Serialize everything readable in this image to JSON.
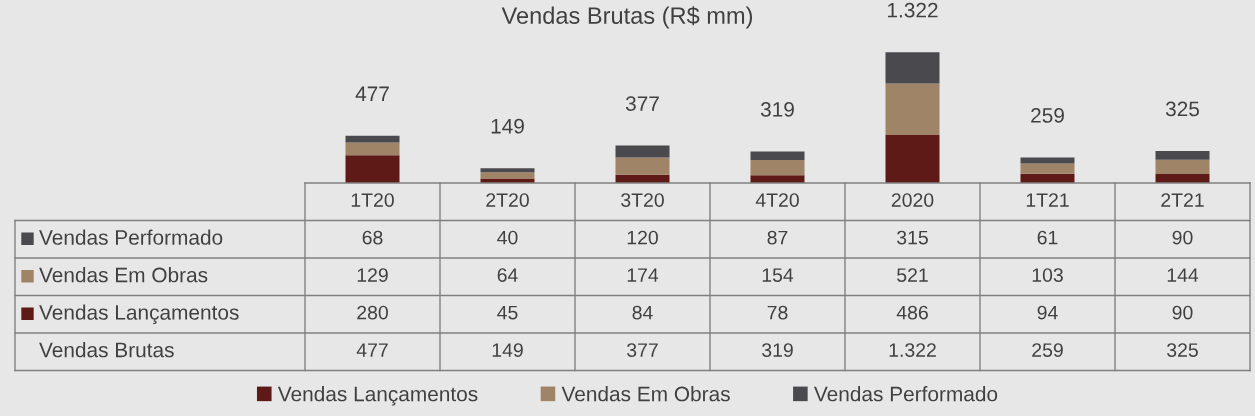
{
  "chart_data": {
    "type": "bar",
    "title": "Vendas Brutas (R$ mm)",
    "stacked": true,
    "categories": [
      "1T20",
      "2T20",
      "3T20",
      "4T20",
      "2020",
      "1T21",
      "2T21"
    ],
    "series": [
      {
        "name": "Vendas Lançamentos",
        "color": "#5e1a16",
        "values": [
          280,
          45,
          84,
          78,
          486,
          94,
          90
        ]
      },
      {
        "name": "Vendas Em Obras",
        "color": "#a08467",
        "values": [
          129,
          64,
          174,
          154,
          521,
          103,
          144
        ]
      },
      {
        "name": "Vendas Performado",
        "color": "#4a494e",
        "values": [
          68,
          40,
          120,
          87,
          315,
          61,
          90
        ]
      }
    ],
    "totals": [
      "477",
      "149",
      "377",
      "319",
      "1.322",
      "259",
      "325"
    ],
    "data_labels": true,
    "annotations": [
      "Vendas Brutas"
    ],
    "legend": "bottom"
  }
}
